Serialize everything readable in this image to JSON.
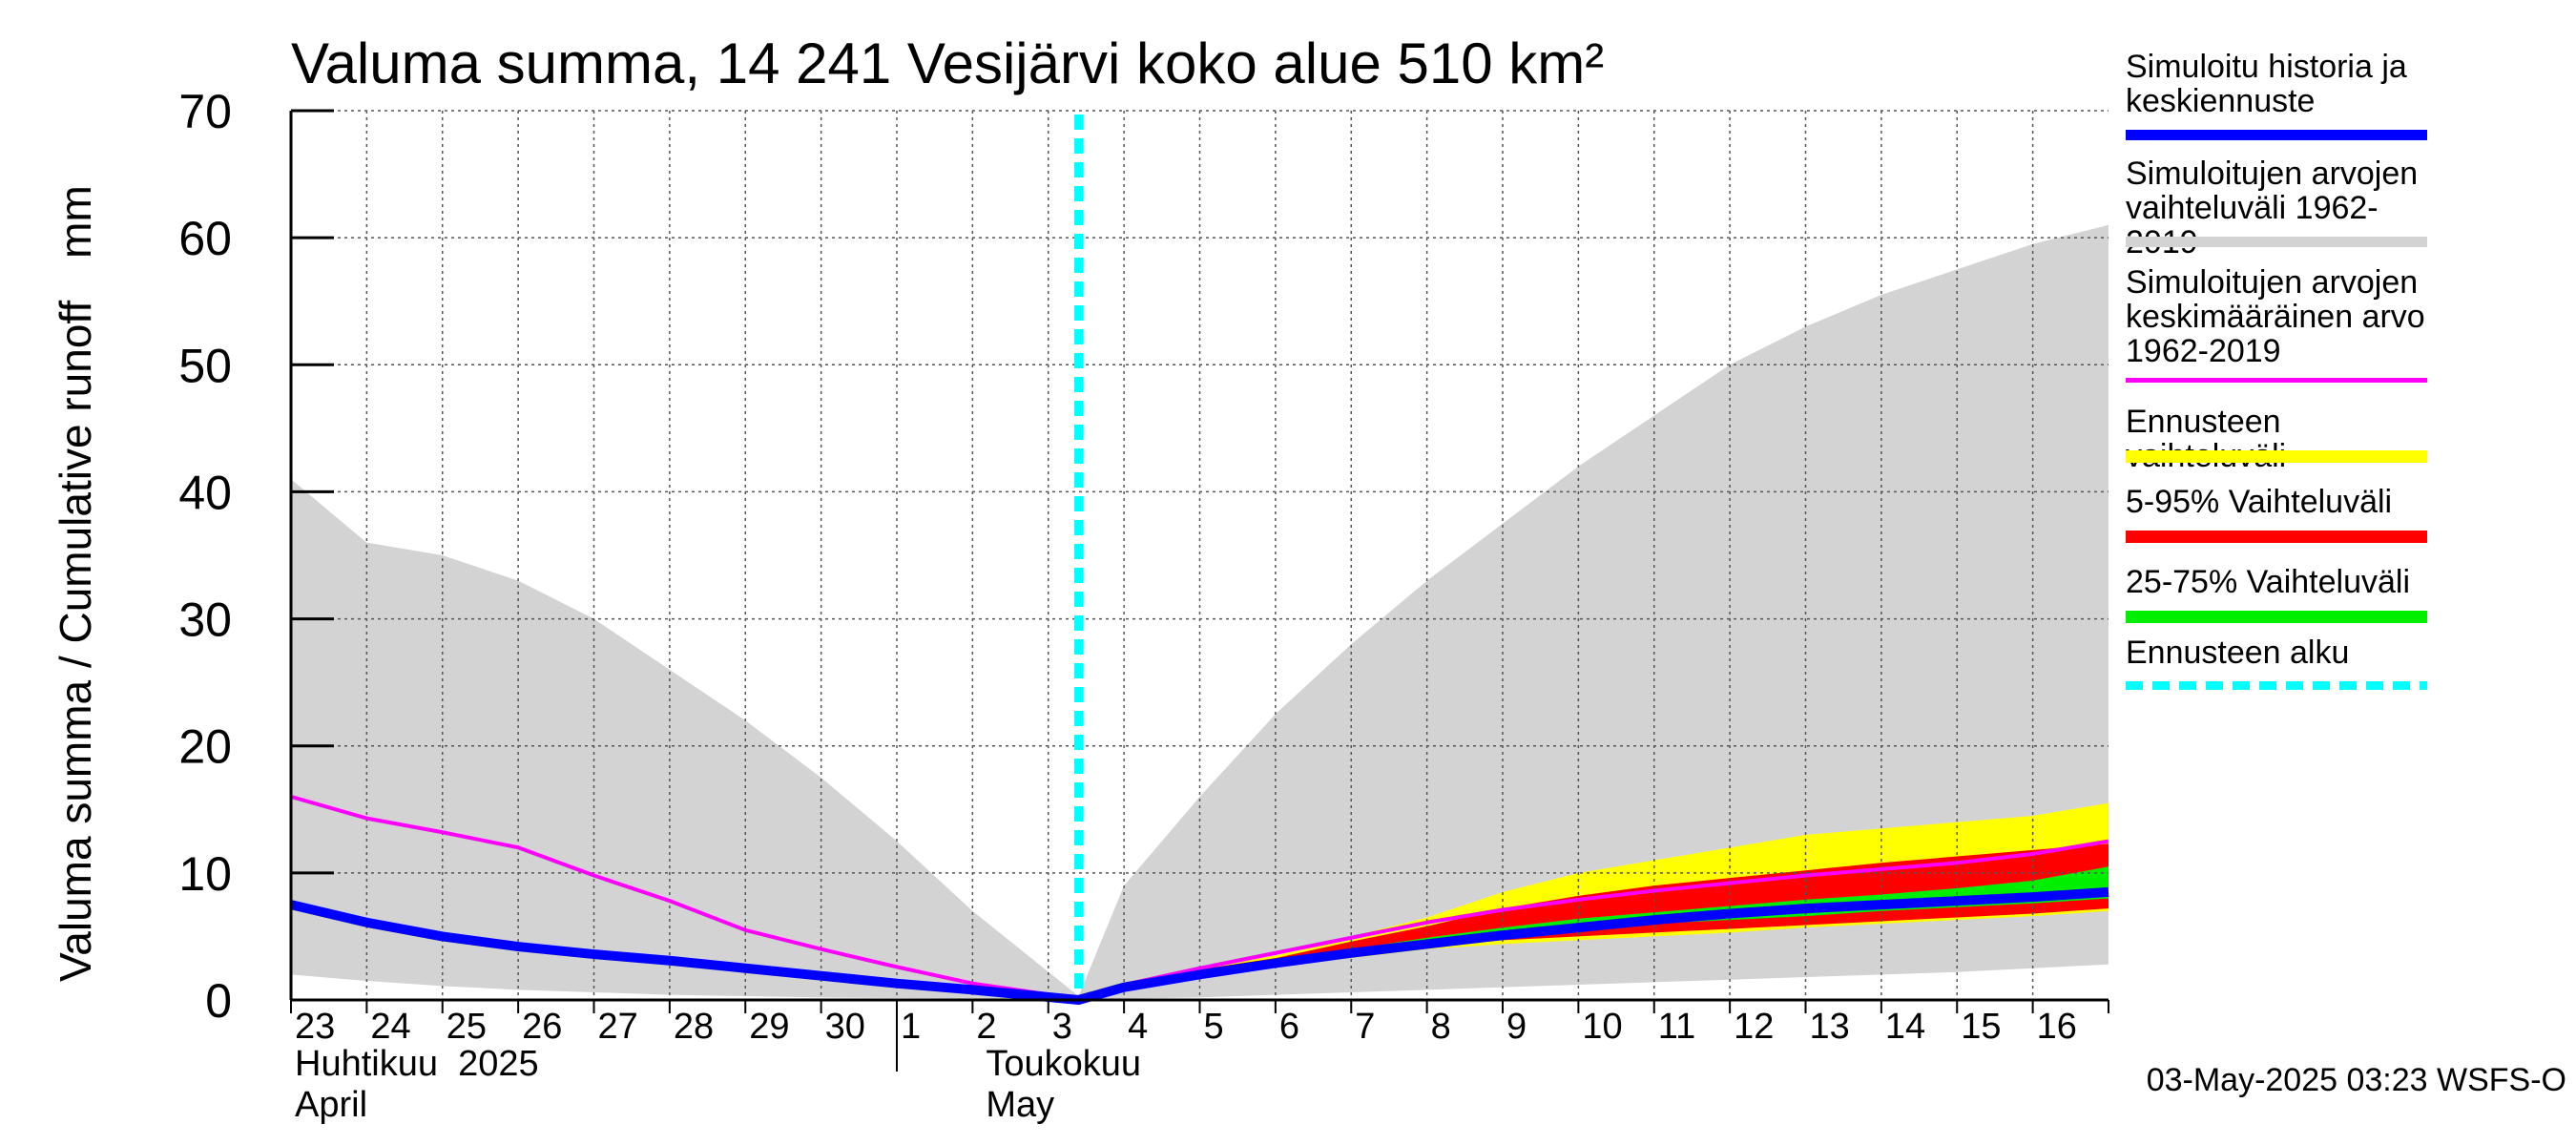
{
  "chart_data": {
    "type": "area",
    "title": "Valuma summa, 14 241 Vesijärvi koko alue 510 km²",
    "ylabel": "Valuma summa / Cumulative runoff",
    "yunit": "mm",
    "ylim": [
      0,
      70
    ],
    "yticks": [
      0,
      10,
      20,
      30,
      40,
      50,
      60,
      70
    ],
    "xlim": [
      0,
      24
    ],
    "grid": true,
    "day_labels": [
      "23",
      "24",
      "25",
      "26",
      "27",
      "28",
      "29",
      "30",
      "1",
      "2",
      "3",
      "4",
      "5",
      "6",
      "7",
      "8",
      "9",
      "10",
      "11",
      "12",
      "13",
      "14",
      "15",
      "16"
    ],
    "month_labels": [
      {
        "fi": "Huhtikuu  2025",
        "en": "April"
      },
      {
        "fi": "Toukokuu",
        "en": "May"
      }
    ],
    "forecast_start": 10.4,
    "series": [
      {
        "name": "Simuloitujen arvojen vaihteluväli 1962-2019",
        "kind": "band",
        "x": [
          0,
          1,
          2,
          3,
          4,
          5,
          6,
          7,
          8,
          9,
          10.4,
          11,
          12,
          13,
          14,
          15,
          16,
          17,
          18,
          19,
          20,
          21,
          22,
          23,
          24
        ],
        "upper": [
          41,
          36,
          35,
          33,
          30,
          26,
          22,
          17.5,
          12.5,
          7,
          0.3,
          9,
          16,
          22.5,
          28,
          33,
          37.5,
          42,
          46,
          50,
          53,
          55.5,
          57.5,
          59.5,
          61
        ],
        "lower": [
          2,
          1.5,
          1.1,
          0.8,
          0.6,
          0.4,
          0.3,
          0.2,
          0.15,
          0.1,
          0,
          0.1,
          0.2,
          0.4,
          0.6,
          0.8,
          1.0,
          1.2,
          1.4,
          1.6,
          1.8,
          2.0,
          2.2,
          2.5,
          2.8
        ]
      },
      {
        "name": "Ennusteen vaihteluväli",
        "kind": "band",
        "x": [
          10.4,
          11,
          12,
          13,
          14,
          15,
          16,
          17,
          18,
          19,
          20,
          21,
          22,
          23,
          24
        ],
        "upper": [
          0.3,
          1,
          2.5,
          3.5,
          5,
          6.5,
          8.5,
          10,
          11,
          12,
          13,
          13.5,
          14,
          14.5,
          15.5
        ],
        "lower": [
          0.2,
          0.8,
          1.8,
          2.6,
          3.3,
          4,
          4.4,
          4.7,
          5,
          5.3,
          5.7,
          6,
          6.3,
          6.6,
          7
        ]
      },
      {
        "name": "5-95% Vaihteluväli",
        "kind": "band",
        "x": [
          10.4,
          11,
          12,
          13,
          14,
          15,
          16,
          17,
          18,
          19,
          20,
          21,
          22,
          23,
          24
        ],
        "upper": [
          0.3,
          1,
          2.4,
          3.3,
          4.6,
          5.8,
          7.2,
          8.2,
          9,
          9.6,
          10.2,
          10.8,
          11.3,
          11.8,
          12.3
        ],
        "lower": [
          0.2,
          0.85,
          1.9,
          2.7,
          3.5,
          4.2,
          4.7,
          5.0,
          5.3,
          5.6,
          5.9,
          6.2,
          6.5,
          6.8,
          7.2
        ]
      },
      {
        "name": "25-75% Vaihteluväli",
        "kind": "band",
        "x": [
          10.4,
          11,
          12,
          13,
          14,
          15,
          16,
          17,
          18,
          19,
          20,
          21,
          22,
          23,
          24
        ],
        "upper": [
          0.3,
          0.95,
          2.2,
          3.0,
          4.0,
          4.9,
          5.7,
          6.4,
          6.9,
          7.4,
          7.9,
          8.3,
          8.8,
          9.4,
          10.5
        ],
        "lower": [
          0.25,
          0.9,
          2.0,
          2.8,
          3.7,
          4.5,
          5.1,
          5.6,
          6.0,
          6.3,
          6.6,
          7.0,
          7.3,
          7.6,
          8.0
        ]
      },
      {
        "name": "Simuloitujen arvojen keskimääräinen arvo 1962-2019",
        "kind": "line",
        "x": [
          0,
          1,
          2,
          3,
          4,
          5,
          6,
          7,
          8,
          9,
          10.4,
          11,
          12,
          13,
          14,
          15,
          16,
          17,
          18,
          19,
          20,
          21,
          22,
          23,
          24
        ],
        "values": [
          16,
          14.3,
          13.2,
          12,
          9.8,
          7.8,
          5.5,
          4,
          2.6,
          1.3,
          0.1,
          1.2,
          2.5,
          3.7,
          4.9,
          6.1,
          7.1,
          7.9,
          8.6,
          9.2,
          9.8,
          10.3,
          10.8,
          11.5,
          12.5
        ]
      },
      {
        "name": "Simuloitu historia ja keskiennuste",
        "kind": "line",
        "x": [
          0,
          1,
          2,
          3,
          4,
          5,
          6,
          7,
          8,
          9,
          10.4,
          11,
          12,
          13,
          14,
          15,
          16,
          17,
          18,
          19,
          20,
          21,
          22,
          23,
          24
        ],
        "values": [
          7.5,
          6.1,
          5.0,
          4.2,
          3.6,
          3.1,
          2.5,
          1.9,
          1.3,
          0.8,
          0,
          1.0,
          2.0,
          2.9,
          3.7,
          4.4,
          5.1,
          5.7,
          6.3,
          6.8,
          7.2,
          7.5,
          7.8,
          8.1,
          8.5
        ]
      }
    ]
  },
  "legend": [
    {
      "label": "Simuloitu historia ja\nkeskiennuste",
      "color": "#0000ff",
      "style": "solid"
    },
    {
      "label": "Simuloitujen arvojen\nvaihteluväli 1962-2019",
      "color": "#d3d3d3",
      "style": "solid"
    },
    {
      "label": "Simuloitujen arvojen\nkeskimääräinen arvo\n   1962-2019",
      "color": "#ff00ff",
      "style": "solid"
    },
    {
      "label": "Ennusteen vaihteluväli",
      "color": "#ffff00",
      "style": "solid"
    },
    {
      "label": "5-95% Vaihteluväli",
      "color": "#ff0000",
      "style": "solid"
    },
    {
      "label": "25-75% Vaihteluväli",
      "color": "#00ee00",
      "style": "solid"
    },
    {
      "label": "Ennusteen alku",
      "color": "#00ffff",
      "style": "dashed"
    }
  ],
  "footer": "03-May-2025 03:23 WSFS-O"
}
